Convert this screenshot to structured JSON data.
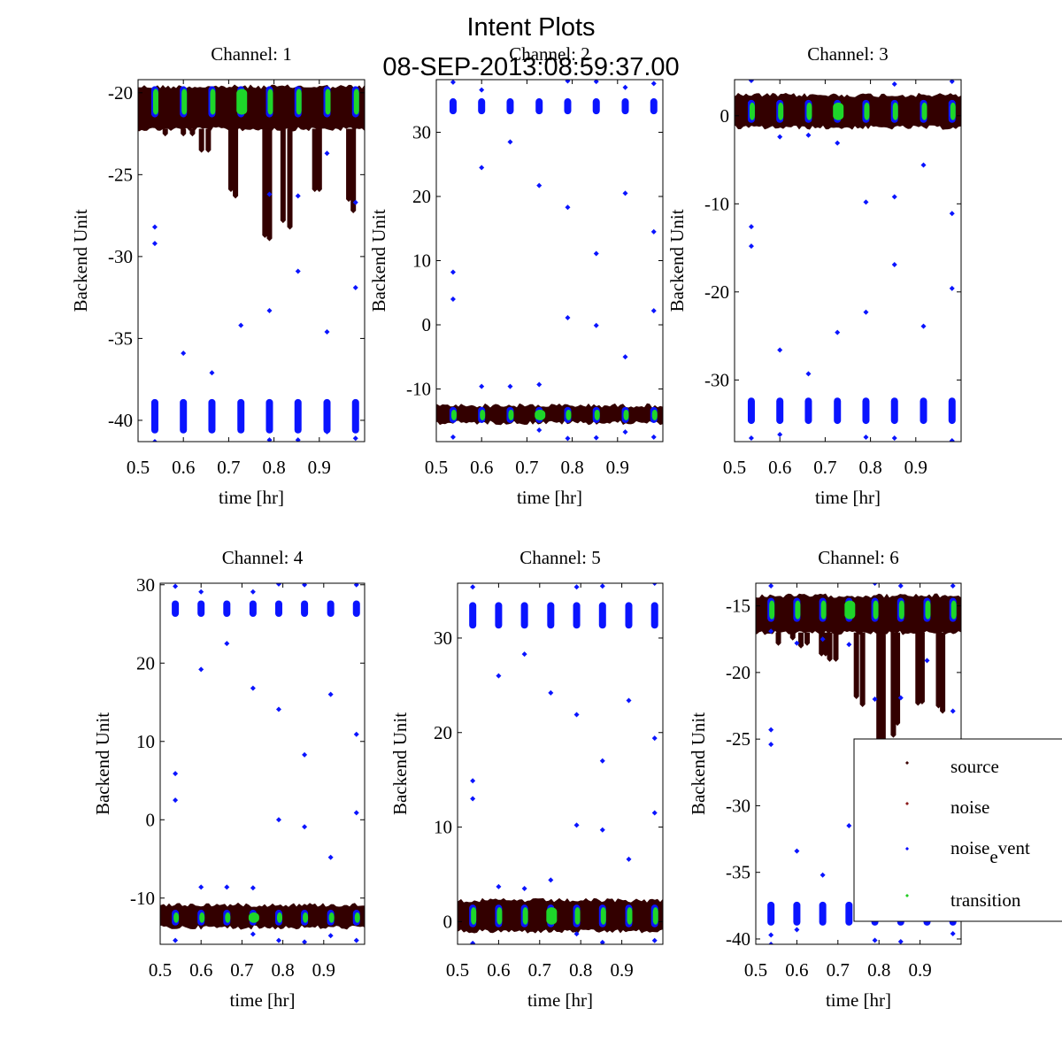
{
  "figure": {
    "title_line1": "Intent Plots",
    "title_line2": "08-SEP-2013:08:59:37.00"
  },
  "legend": {
    "placement": "lower-right (inside Channel 6 panel)",
    "entries": [
      {
        "label": "source",
        "color": "#3a0000"
      },
      {
        "label": "noise",
        "color": "#8b1a1a"
      },
      {
        "label": "noise_event",
        "label_main": "noise",
        "label_sub": "e",
        "label_rest": "vent",
        "color": "#0000ff"
      },
      {
        "label": "transition",
        "color": "#22cc22"
      }
    ]
  },
  "colors": {
    "source": "#330000",
    "noise": "#8b1a1a",
    "noise_event": "#0a14ff",
    "transition": "#1ed62a"
  },
  "chart_data": [
    {
      "type": "scatter",
      "title": "Channel: 1",
      "xlabel": "time [hr]",
      "ylabel": "Backend Unit",
      "xlim": [
        0.5,
        1.0
      ],
      "ylim": [
        -41.3,
        -19.2
      ],
      "xticks": [
        0.5,
        0.6,
        0.7,
        0.8,
        0.9
      ],
      "xtick_labels": [
        "0.5",
        "0.6",
        "0.7",
        "0.8",
        "0.9"
      ],
      "yticks": [
        -20,
        -25,
        -30,
        -35,
        -40
      ],
      "ytick_labels": [
        "-20",
        "-25",
        "-30",
        "-35",
        "-40"
      ],
      "source_band": [
        -22.2,
        -19.6
      ],
      "source_dips": [
        [
          0.56,
          -22.5
        ],
        [
          0.6,
          -22.5
        ],
        [
          0.62,
          -22.5
        ],
        [
          0.64,
          -23.5
        ],
        [
          0.655,
          -23.5
        ],
        [
          0.705,
          -25.9
        ],
        [
          0.715,
          -26.3
        ],
        [
          0.78,
          -28.7
        ],
        [
          0.79,
          -28.9
        ],
        [
          0.82,
          -27.8
        ],
        [
          0.835,
          -28.2
        ],
        [
          0.89,
          -25.9
        ],
        [
          0.9,
          -25.9
        ],
        [
          0.965,
          -26.5
        ],
        [
          0.975,
          -27.2
        ]
      ],
      "event_times": [
        0.537,
        0.6,
        0.663,
        0.727,
        0.79,
        0.853,
        0.917,
        0.98
      ],
      "event_high_band": [
        -21.5,
        -19.6
      ],
      "event_low_band": [
        -40.8,
        -38.7
      ],
      "event_outliers": [
        [
          0.537,
          -28.2
        ],
        [
          0.537,
          -29.2
        ],
        [
          0.6,
          -35.9
        ],
        [
          0.663,
          -37.1
        ],
        [
          0.727,
          -34.2
        ],
        [
          0.79,
          -33.3
        ],
        [
          0.79,
          -26.2
        ],
        [
          0.853,
          -30.9
        ],
        [
          0.853,
          -26.3
        ],
        [
          0.917,
          -34.6
        ],
        [
          0.917,
          -23.7
        ],
        [
          0.98,
          -31.9
        ],
        [
          0.98,
          -26.7
        ],
        [
          0.537,
          -41.3
        ],
        [
          0.6,
          -40.6
        ],
        [
          0.79,
          -41.2
        ],
        [
          0.853,
          -41.2
        ],
        [
          0.917,
          -40.7
        ],
        [
          0.98,
          -41.1
        ]
      ],
      "transition_times": [
        0.537,
        0.6,
        0.663,
        0.727,
        0.79,
        0.853,
        0.917,
        0.98
      ],
      "transition_wide_index": 3
    },
    {
      "type": "scatter",
      "title": "Channel: 2",
      "xlabel": "time [hr]",
      "ylabel": "Backend Unit",
      "xlim": [
        0.5,
        1.0
      ],
      "ylim": [
        -18.2,
        38.2
      ],
      "xticks": [
        0.5,
        0.6,
        0.7,
        0.8,
        0.9
      ],
      "xtick_labels": [
        "0.5",
        "0.6",
        "0.7",
        "0.8",
        "0.9"
      ],
      "yticks": [
        30,
        20,
        10,
        0,
        -10
      ],
      "ytick_labels": [
        "30",
        "20",
        "10",
        "0",
        "-10"
      ],
      "source_band": [
        -15.2,
        -12.5
      ],
      "source_dips": [],
      "event_times": [
        0.537,
        0.6,
        0.663,
        0.727,
        0.79,
        0.853,
        0.917,
        0.98
      ],
      "event_high_band": [
        32.8,
        35.3
      ],
      "event_low_band": [
        -15.3,
        -12.8
      ],
      "event_outliers": [
        [
          0.537,
          8.2
        ],
        [
          0.537,
          4.0
        ],
        [
          0.6,
          24.5
        ],
        [
          0.663,
          28.5
        ],
        [
          0.727,
          21.7
        ],
        [
          0.79,
          18.3
        ],
        [
          0.79,
          1.1
        ],
        [
          0.853,
          11.1
        ],
        [
          0.853,
          -0.1
        ],
        [
          0.917,
          20.5
        ],
        [
          0.917,
          -5.0
        ],
        [
          0.98,
          14.5
        ],
        [
          0.98,
          2.2
        ],
        [
          0.6,
          -9.6
        ],
        [
          0.663,
          -9.6
        ],
        [
          0.727,
          -9.3
        ],
        [
          0.537,
          -17.5
        ],
        [
          0.727,
          -16.4
        ],
        [
          0.79,
          -17.7
        ],
        [
          0.853,
          -17.6
        ],
        [
          0.917,
          -16.7
        ],
        [
          0.98,
          -17.5
        ],
        [
          0.537,
          37.8
        ],
        [
          0.6,
          36.6
        ],
        [
          0.79,
          38.0
        ],
        [
          0.853,
          37.9
        ],
        [
          0.917,
          37.0
        ],
        [
          0.98,
          37.6
        ]
      ],
      "transition_times": [
        0.537,
        0.6,
        0.663,
        0.727,
        0.79,
        0.853,
        0.917,
        0.98
      ],
      "transition_wide_index": 3
    },
    {
      "type": "scatter",
      "title": "Channel: 3",
      "xlabel": "time [hr]",
      "ylabel": "Backend Unit",
      "xlim": [
        0.5,
        1.0
      ],
      "ylim": [
        -37.0,
        4.1
      ],
      "xticks": [
        0.5,
        0.6,
        0.7,
        0.8,
        0.9
      ],
      "xtick_labels": [
        "0.5",
        "0.6",
        "0.7",
        "0.8",
        "0.9"
      ],
      "yticks": [
        0,
        -10,
        -20,
        -30
      ],
      "ytick_labels": [
        "0",
        "-10",
        "-20",
        "-30"
      ],
      "source_band": [
        -1.3,
        2.4
      ],
      "source_dips": [],
      "event_times": [
        0.537,
        0.6,
        0.663,
        0.727,
        0.79,
        0.853,
        0.917,
        0.98
      ],
      "event_high_band": [
        -0.8,
        1.8
      ],
      "event_low_band": [
        -35.0,
        -32.0
      ],
      "event_outliers": [
        [
          0.537,
          -12.6
        ],
        [
          0.537,
          -14.8
        ],
        [
          0.6,
          -2.4
        ],
        [
          0.6,
          -26.6
        ],
        [
          0.663,
          -2.2
        ],
        [
          0.663,
          -29.3
        ],
        [
          0.727,
          -3.1
        ],
        [
          0.727,
          -24.6
        ],
        [
          0.79,
          -9.8
        ],
        [
          0.79,
          -22.3
        ],
        [
          0.853,
          -9.2
        ],
        [
          0.853,
          -16.9
        ],
        [
          0.917,
          -5.6
        ],
        [
          0.917,
          -23.9
        ],
        [
          0.98,
          -11.1
        ],
        [
          0.98,
          -19.6
        ],
        [
          0.537,
          -36.6
        ],
        [
          0.6,
          -36.2
        ],
        [
          0.79,
          -36.5
        ],
        [
          0.853,
          -36.6
        ],
        [
          0.98,
          -36.9
        ],
        [
          0.537,
          4.0
        ],
        [
          0.853,
          3.6
        ],
        [
          0.98,
          3.9
        ]
      ],
      "transition_times": [
        0.537,
        0.6,
        0.663,
        0.727,
        0.79,
        0.853,
        0.917,
        0.98
      ],
      "transition_wide_index": 3
    },
    {
      "type": "scatter",
      "title": "Channel: 4",
      "xlabel": "time [hr]",
      "ylabel": "Backend Unit",
      "xlim": [
        0.5,
        1.0
      ],
      "ylim": [
        -15.9,
        30.2
      ],
      "xticks": [
        0.5,
        0.6,
        0.7,
        0.8,
        0.9
      ],
      "xtick_labels": [
        "0.5",
        "0.6",
        "0.7",
        "0.8",
        "0.9"
      ],
      "yticks": [
        30,
        20,
        10,
        0,
        -10
      ],
      "ytick_labels": [
        "30",
        "20",
        "10",
        "0",
        "-10"
      ],
      "source_band": [
        -13.7,
        -10.8
      ],
      "source_dips": [],
      "event_times": [
        0.537,
        0.6,
        0.663,
        0.727,
        0.79,
        0.853,
        0.917,
        0.98
      ],
      "event_high_band": [
        25.9,
        28.0
      ],
      "event_low_band": [
        -13.5,
        -11.5
      ],
      "event_outliers": [
        [
          0.537,
          5.9
        ],
        [
          0.537,
          2.5
        ],
        [
          0.6,
          19.2
        ],
        [
          0.663,
          22.5
        ],
        [
          0.727,
          16.8
        ],
        [
          0.79,
          14.1
        ],
        [
          0.79,
          0.0
        ],
        [
          0.853,
          8.3
        ],
        [
          0.853,
          -0.9
        ],
        [
          0.917,
          16.0
        ],
        [
          0.917,
          -4.8
        ],
        [
          0.98,
          10.9
        ],
        [
          0.98,
          0.9
        ],
        [
          0.6,
          -8.6
        ],
        [
          0.663,
          -8.6
        ],
        [
          0.727,
          -8.7
        ],
        [
          0.537,
          -15.4
        ],
        [
          0.727,
          -14.6
        ],
        [
          0.79,
          -15.4
        ],
        [
          0.853,
          -15.6
        ],
        [
          0.917,
          -14.8
        ],
        [
          0.98,
          -15.4
        ],
        [
          0.537,
          29.8
        ],
        [
          0.6,
          29.1
        ],
        [
          0.727,
          29.1
        ],
        [
          0.79,
          30.1
        ],
        [
          0.853,
          30.0
        ],
        [
          0.98,
          30.0
        ]
      ],
      "transition_times": [
        0.537,
        0.6,
        0.663,
        0.727,
        0.79,
        0.853,
        0.917,
        0.98
      ],
      "transition_wide_index": 3
    },
    {
      "type": "scatter",
      "title": "Channel: 5",
      "xlabel": "time [hr]",
      "ylabel": "Backend Unit",
      "xlim": [
        0.5,
        1.0
      ],
      "ylim": [
        -2.4,
        35.8
      ],
      "xticks": [
        0.5,
        0.6,
        0.7,
        0.8,
        0.9
      ],
      "xtick_labels": [
        "0.5",
        "0.6",
        "0.7",
        "0.8",
        "0.9"
      ],
      "yticks": [
        30,
        20,
        10,
        0
      ],
      "ytick_labels": [
        "30",
        "20",
        "10",
        "0"
      ],
      "source_band": [
        -1.0,
        2.3
      ],
      "source_dips": [],
      "event_times": [
        0.537,
        0.6,
        0.663,
        0.727,
        0.79,
        0.853,
        0.917,
        0.98
      ],
      "event_high_band": [
        31.0,
        33.8
      ],
      "event_low_band": [
        -0.6,
        1.8
      ],
      "event_outliers": [
        [
          0.537,
          14.9
        ],
        [
          0.537,
          13.0
        ],
        [
          0.6,
          26.0
        ],
        [
          0.6,
          3.7
        ],
        [
          0.663,
          28.3
        ],
        [
          0.663,
          3.5
        ],
        [
          0.727,
          24.2
        ],
        [
          0.727,
          4.4
        ],
        [
          0.79,
          21.9
        ],
        [
          0.79,
          10.2
        ],
        [
          0.853,
          17.0
        ],
        [
          0.853,
          9.7
        ],
        [
          0.917,
          23.4
        ],
        [
          0.917,
          6.6
        ],
        [
          0.98,
          19.4
        ],
        [
          0.98,
          11.5
        ],
        [
          0.537,
          -2.3
        ],
        [
          0.79,
          -1.3
        ],
        [
          0.853,
          -2.2
        ],
        [
          0.98,
          -2.0
        ],
        [
          0.537,
          35.4
        ],
        [
          0.79,
          35.4
        ],
        [
          0.853,
          35.5
        ],
        [
          0.98,
          35.8
        ]
      ],
      "transition_times": [
        0.537,
        0.6,
        0.663,
        0.727,
        0.79,
        0.853,
        0.917,
        0.98
      ],
      "transition_wide_index": 3
    },
    {
      "type": "scatter",
      "title": "Channel: 6",
      "xlabel": "time [hr]",
      "ylabel": "Backend Unit",
      "xlim": [
        0.5,
        1.0
      ],
      "ylim": [
        -40.4,
        -13.3
      ],
      "xticks": [
        0.5,
        0.6,
        0.7,
        0.8,
        0.9
      ],
      "xtick_labels": [
        "0.5",
        "0.6",
        "0.7",
        "0.8",
        "0.9"
      ],
      "yticks": [
        -15,
        -20,
        -25,
        -30,
        -35,
        -40
      ],
      "ytick_labels": [
        "-15",
        "-20",
        "-25",
        "-30",
        "-35",
        "-40"
      ],
      "source_band": [
        -17.0,
        -14.2
      ],
      "source_dips": [
        [
          0.555,
          -17.8
        ],
        [
          0.59,
          -17.4
        ],
        [
          0.61,
          -18.0
        ],
        [
          0.625,
          -17.8
        ],
        [
          0.66,
          -18.6
        ],
        [
          0.67,
          -18.6
        ],
        [
          0.68,
          -19.0
        ],
        [
          0.695,
          -19.0
        ],
        [
          0.745,
          -21.8
        ],
        [
          0.76,
          -22.4
        ],
        [
          0.8,
          -28.5
        ],
        [
          0.81,
          -28.3
        ],
        [
          0.835,
          -24.7
        ],
        [
          0.845,
          -23.8
        ],
        [
          0.895,
          -22.3
        ],
        [
          0.905,
          -22.2
        ],
        [
          0.945,
          -22.5
        ],
        [
          0.955,
          -22.9
        ]
      ],
      "event_times": [
        0.537,
        0.6,
        0.663,
        0.727,
        0.79,
        0.853,
        0.917,
        0.98
      ],
      "event_high_band": [
        -16.2,
        -14.4
      ],
      "event_low_band": [
        -39.0,
        -37.2
      ],
      "event_outliers": [
        [
          0.537,
          -24.3
        ],
        [
          0.537,
          -25.4
        ],
        [
          0.6,
          -33.4
        ],
        [
          0.663,
          -35.2
        ],
        [
          0.727,
          -31.5
        ],
        [
          0.79,
          -22.0
        ],
        [
          0.853,
          -21.9
        ],
        [
          0.917,
          -19.1
        ],
        [
          0.98,
          -22.9
        ],
        [
          0.537,
          -39.7
        ],
        [
          0.6,
          -39.3
        ],
        [
          0.537,
          -40.4
        ],
        [
          0.79,
          -40.1
        ],
        [
          0.853,
          -40.2
        ],
        [
          0.98,
          -39.6
        ],
        [
          0.537,
          -13.5
        ],
        [
          0.79,
          -13.3
        ],
        [
          0.853,
          -13.5
        ],
        [
          0.98,
          -13.5
        ],
        [
          0.537,
          -16.9
        ],
        [
          0.6,
          -17.8
        ],
        [
          0.663,
          -17.5
        ],
        [
          0.727,
          -17.9
        ]
      ],
      "transition_times": [
        0.537,
        0.6,
        0.663,
        0.727,
        0.79,
        0.853,
        0.917,
        0.98
      ],
      "transition_wide_index": 3
    }
  ]
}
